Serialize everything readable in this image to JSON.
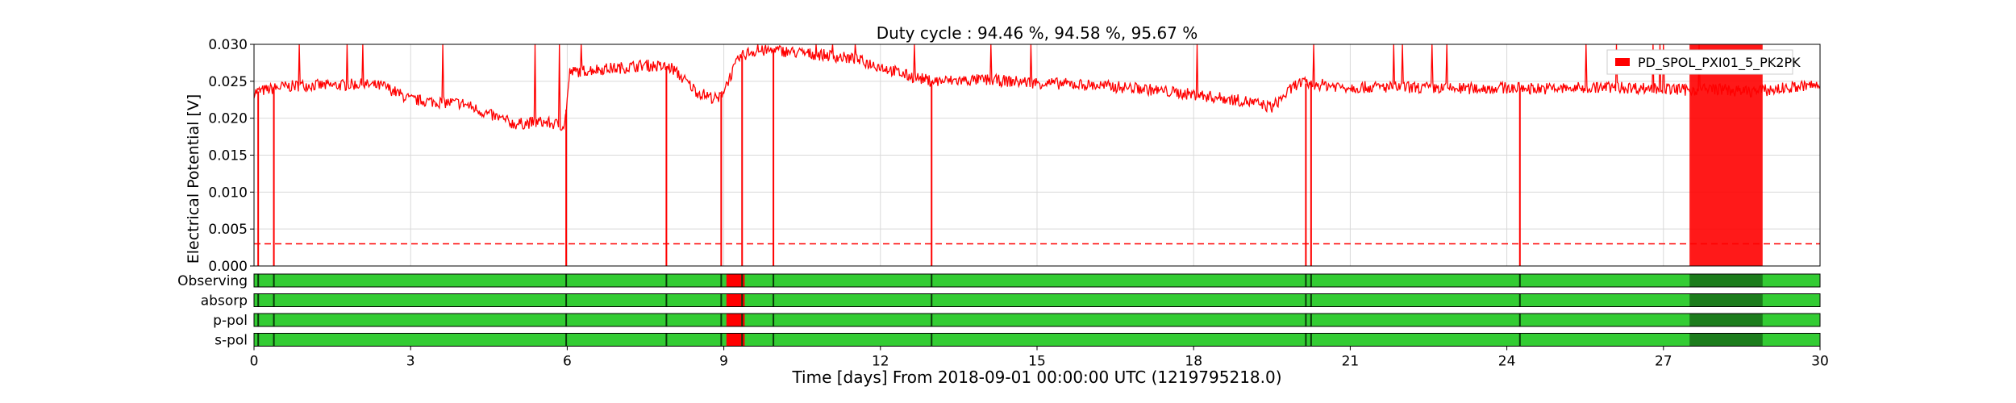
{
  "chart_data": {
    "type": "line",
    "title": "Duty cycle : 94.46 %, 94.58 %, 95.67 %",
    "xlabel": "Time [days] From 2018-09-01 00:00:00 UTC (1219795218.0)",
    "ylabel": "Electrical Potential [V]",
    "xlim": [
      0,
      30
    ],
    "ylim": [
      0,
      0.03
    ],
    "x_ticks": [
      "0",
      "3",
      "6",
      "9",
      "12",
      "15",
      "18",
      "21",
      "24",
      "27",
      "30"
    ],
    "y_ticks": [
      "0.000",
      "0.005",
      "0.010",
      "0.015",
      "0.020",
      "0.025",
      "0.030"
    ],
    "grid": true,
    "legend_position": "top-right",
    "series": [
      {
        "name": "PD_SPOL_PXI01_5_PK2PK",
        "color": "#ff0000",
        "x": [
          0,
          0.5,
          1,
          1.5,
          2,
          2.5,
          3,
          3.5,
          4,
          4.5,
          5,
          5.5,
          5.95,
          6.05,
          6.5,
          7,
          7.5,
          8,
          8.5,
          8.9,
          9.3,
          9.5,
          10,
          10.5,
          11,
          11.5,
          12,
          12.5,
          13,
          14,
          15,
          16,
          17,
          18,
          19,
          19.5,
          20,
          20.5,
          21,
          22,
          23,
          24,
          25,
          26,
          27,
          27.5,
          28,
          28.5,
          29,
          29.5,
          30
        ],
        "y": [
          0.0235,
          0.0242,
          0.0245,
          0.0244,
          0.0246,
          0.0243,
          0.0225,
          0.0222,
          0.022,
          0.0205,
          0.0192,
          0.0195,
          0.019,
          0.0262,
          0.0266,
          0.0268,
          0.0272,
          0.0268,
          0.0235,
          0.0225,
          0.0282,
          0.029,
          0.0292,
          0.0288,
          0.0285,
          0.028,
          0.027,
          0.0258,
          0.025,
          0.0252,
          0.0248,
          0.0245,
          0.024,
          0.0232,
          0.0223,
          0.0215,
          0.0248,
          0.0245,
          0.0242,
          0.0242,
          0.024,
          0.0241,
          0.024,
          0.0242,
          0.024,
          0.0238,
          0.024,
          0.0236,
          0.0238,
          0.0242,
          0.0245
        ]
      }
    ],
    "threshold_line": {
      "y": 0.003,
      "color": "#ff0000",
      "style": "dashed"
    },
    "dropouts": [
      0.08,
      0.38,
      5.98,
      7.9,
      8.95,
      9.35,
      9.95,
      12.98,
      20.15,
      20.25,
      24.25
    ],
    "saturated_band": [
      27.5,
      28.9
    ],
    "state_segments": {
      "labels": [
        "Observing",
        "absorp",
        "p-pol",
        "s-pol"
      ],
      "colors": {
        "on": "#33cc33",
        "off": "#ff0000",
        "edge": "#0a3a0a"
      },
      "off_intervals": [
        [
          9.05,
          9.4
        ]
      ]
    }
  }
}
